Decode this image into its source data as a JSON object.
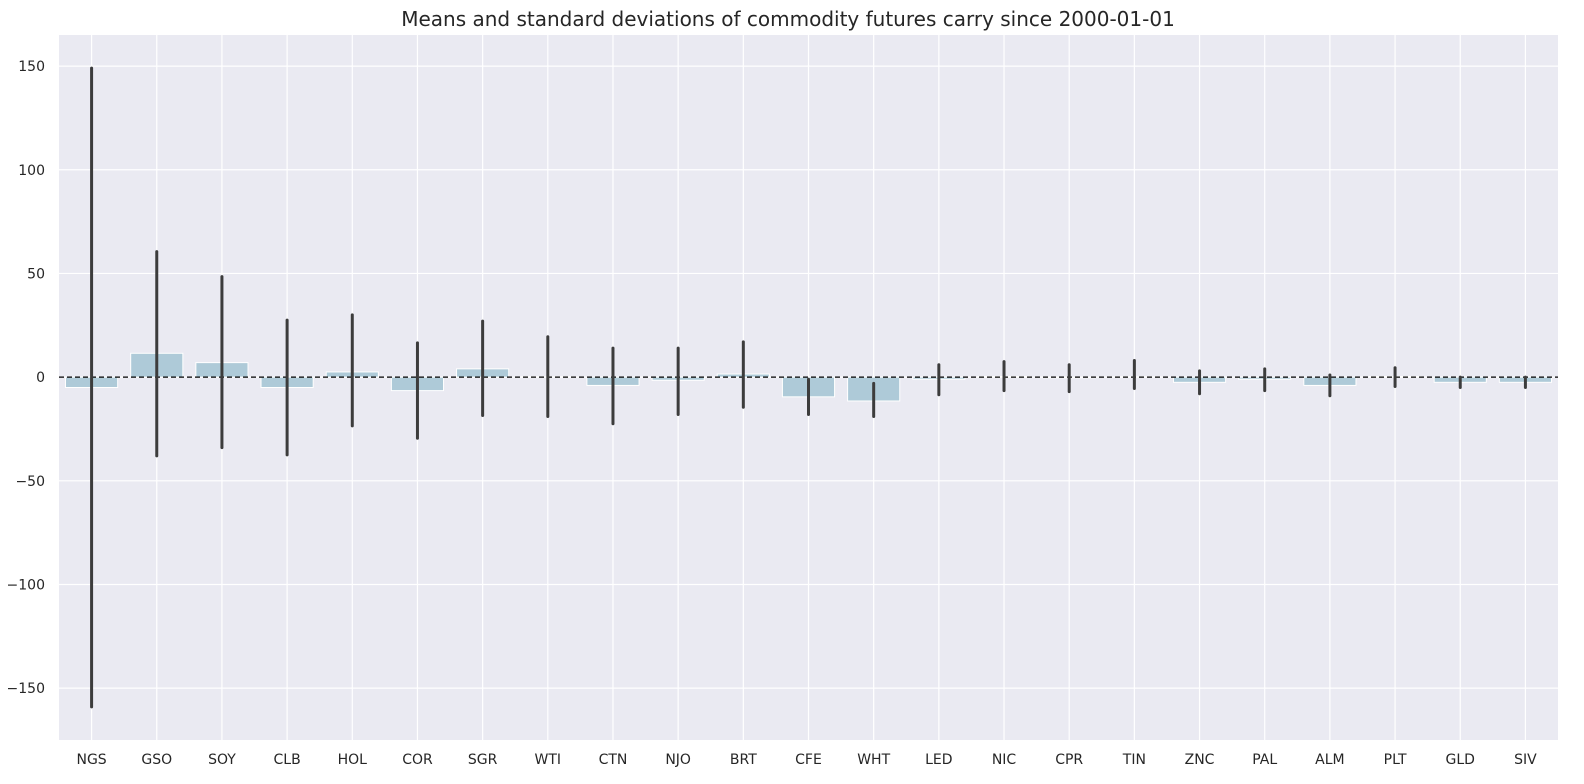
{
  "chart_data": {
    "type": "bar",
    "title": "Means and standard deviations of commodity futures carry since 2000-01-01",
    "xlabel": "",
    "ylabel": "",
    "ylim": [
      -175,
      165
    ],
    "yticks": [
      -150,
      -100,
      -50,
      0,
      50,
      100,
      150
    ],
    "ytick_labels": [
      "−150",
      "−100",
      "−50",
      "0",
      "50",
      "100",
      "150"
    ],
    "grid": true,
    "zero_line": "dashed",
    "categories": [
      "NGS",
      "GSO",
      "SOY",
      "CLB",
      "HOL",
      "COR",
      "SGR",
      "WTI",
      "CTN",
      "NJO",
      "BRT",
      "CFE",
      "WHT",
      "LED",
      "NIC",
      "CPR",
      "TIN",
      "ZNC",
      "PAL",
      "ALM",
      "PLT",
      "GLD",
      "SIV"
    ],
    "values": [
      -5,
      11.5,
      7,
      -5,
      2.5,
      -6.5,
      4,
      0.2,
      -4,
      -1.5,
      1.5,
      -9.5,
      -11.5,
      -1,
      0.3,
      -0.3,
      0.2,
      -2.5,
      -1,
      -4,
      0.3,
      -2.5,
      -2.5
    ],
    "error_low": [
      -159,
      -38,
      -34,
      -37.5,
      -23.5,
      -29.5,
      -18.5,
      -19,
      -22.5,
      -18,
      -14.5,
      -18,
      -19,
      -8.5,
      -6.5,
      -7,
      -5.5,
      -8,
      -6.5,
      -9,
      -4.5,
      -5,
      -5
    ],
    "error_high": [
      149,
      60.5,
      48.5,
      27.5,
      30,
      16.5,
      27,
      19.5,
      14,
      14,
      17,
      -1,
      -3,
      6,
      7.5,
      6,
      8,
      3,
      4,
      1,
      4.5,
      0,
      0
    ],
    "colors": {
      "bar": "#aecad8",
      "errorbar": "#3c3c3c",
      "background": "#eaeaf2",
      "grid": "#ffffff",
      "zero_line": "#000000"
    }
  }
}
